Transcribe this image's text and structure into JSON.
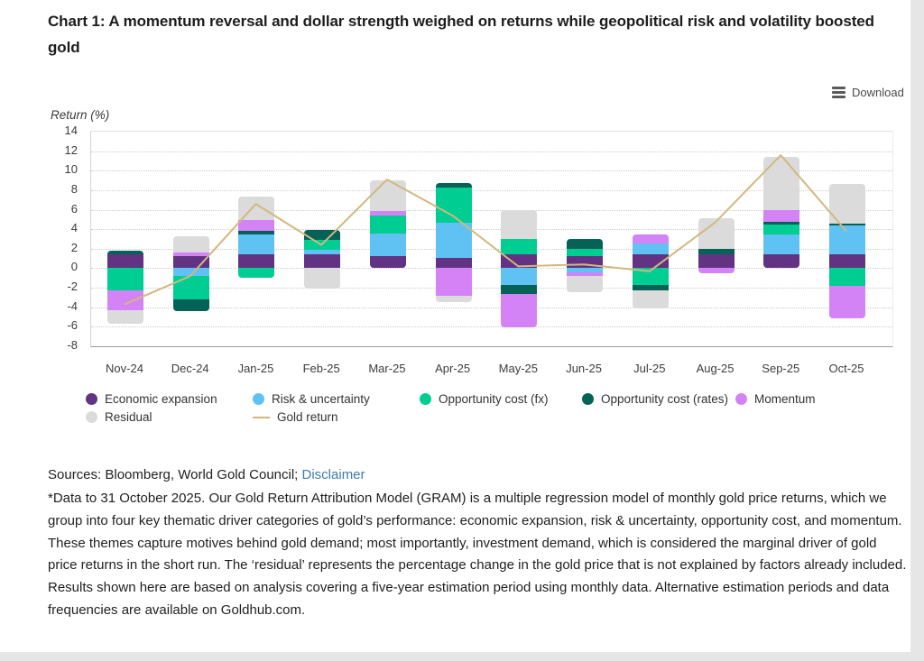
{
  "title": "Chart 1: A momentum reversal and dollar strength weighed on returns while geopolitical risk and volatility boosted gold",
  "toolbar": {
    "download_label": "Download"
  },
  "chart_data": {
    "type": "bar",
    "subtype": "stacked-bar-with-line",
    "title": "Chart 1: A momentum reversal and dollar strength weighed on returns while geopolitical risk and volatility boosted gold",
    "ylabel": "Return (%)",
    "ylim": [
      -8,
      14
    ],
    "ytick_step": 2,
    "grid": true,
    "legend_position": "bottom",
    "categories": [
      "Nov-24",
      "Dec-24",
      "Jan-25",
      "Feb-25",
      "Mar-25",
      "Apr-25",
      "May-25",
      "Jun-25",
      "Jul-25",
      "Aug-25",
      "Sep-25",
      "Oct-25"
    ],
    "series": [
      {
        "name": "Economic expansion",
        "color": "#623383",
        "values": [
          1.4,
          1.2,
          1.4,
          1.4,
          1.2,
          1.1,
          1.4,
          1.2,
          1.4,
          1.4,
          1.4,
          1.4
        ]
      },
      {
        "name": "Risk & uncertainty",
        "color": "#5fc2f3",
        "values": [
          0,
          -0.8,
          2.1,
          0.5,
          2.4,
          3.6,
          -1.7,
          -0.4,
          1.1,
          0,
          2.1,
          3.0
        ]
      },
      {
        "name": "Opportunity cost (fx)",
        "color": "#00cd92",
        "values": [
          -2.3,
          -2.4,
          -1.0,
          1.0,
          1.8,
          3.6,
          1.6,
          0.8,
          -1.7,
          0,
          1.0,
          -1.8
        ]
      },
      {
        "name": "Opportunity cost (rates)",
        "color": "#066257",
        "values": [
          0.4,
          -1.2,
          0.3,
          1.0,
          0,
          0.4,
          -0.9,
          1.0,
          -0.6,
          0.6,
          0.3,
          0.2
        ]
      },
      {
        "name": "Momentum",
        "color": "#d383f5",
        "values": [
          -2.0,
          0.4,
          1.1,
          0,
          0.5,
          -2.8,
          -3.5,
          -0.35,
          1.0,
          -0.5,
          1.2,
          -3.3
        ]
      },
      {
        "name": "Residual",
        "color": "#dbdbdb",
        "values": [
          -1.4,
          1.7,
          2.4,
          -2.1,
          3.1,
          -0.7,
          3.0,
          -1.7,
          -1.8,
          3.1,
          5.4,
          4.0
        ]
      }
    ],
    "line_series": {
      "name": "Gold return",
      "color": "#d2b87e",
      "values": [
        -3.8,
        -0.9,
        6.5,
        2.3,
        9.0,
        5.3,
        0.1,
        0.3,
        -0.4,
        4.6,
        11.5,
        3.7
      ]
    }
  },
  "footer": {
    "sources_prefix": "Sources: Bloomberg, World Gold Council; ",
    "disclaimer_label": "Disclaimer",
    "footnote": "*Data to 31 October 2025. Our Gold Return Attribution Model (GRAM) is a multiple regression model of monthly gold price returns, which we group into four key thematic driver categories of gold’s performance: economic expansion, risk & uncertainty, opportunity cost, and momentum. These themes capture motives behind gold demand; most importantly, investment demand, which is considered the marginal driver of gold price returns in the short run. The ‘residual’ represents the percentage change in the gold price that is not explained by factors already included. Results shown here are based on analysis covering a five-year estimation period using monthly data. Alternative estimation periods and data frequencies are available on Goldhub.com."
  }
}
